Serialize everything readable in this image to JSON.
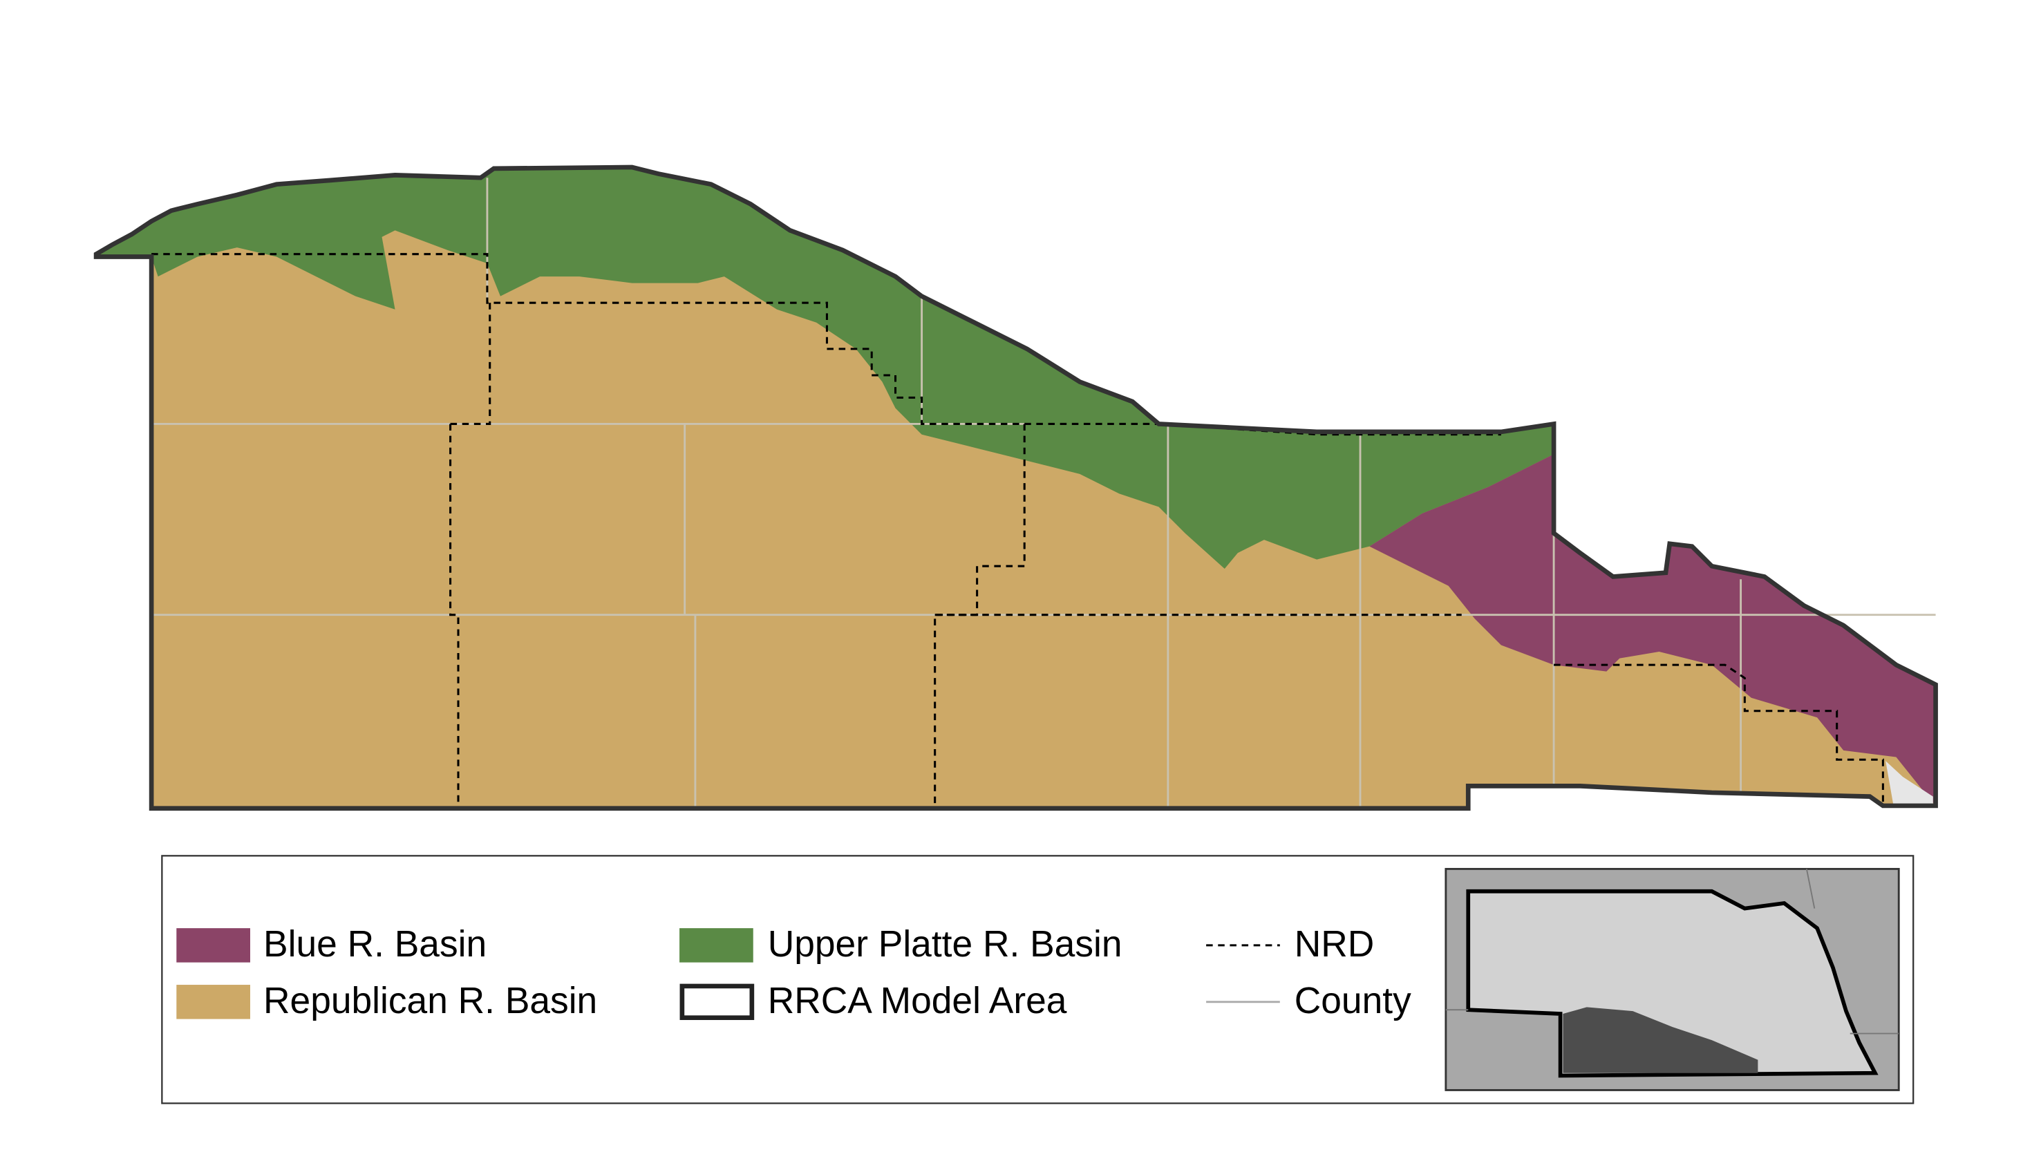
{
  "legend": {
    "items": [
      {
        "label": "Blue R. Basin"
      },
      {
        "label": "Republican R. Basin"
      },
      {
        "label": "Upper Platte R. Basin"
      },
      {
        "label": "RRCA Model Area"
      },
      {
        "label": "NRD"
      },
      {
        "label": "County"
      }
    ]
  }
}
